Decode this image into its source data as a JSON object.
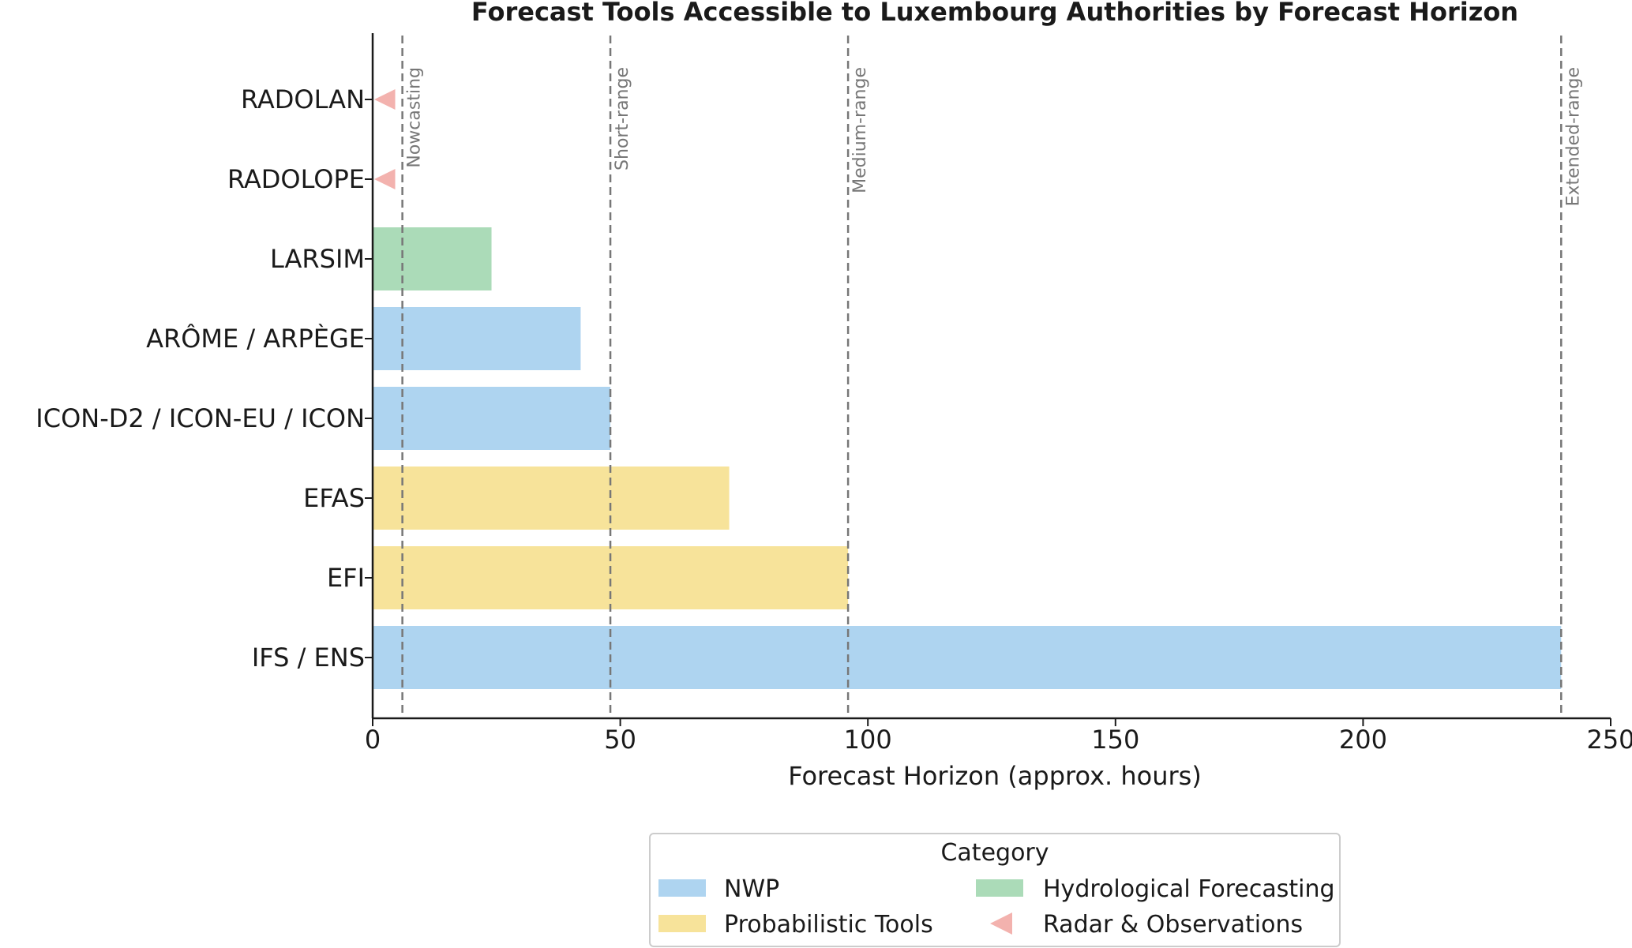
{
  "chart_data": {
    "type": "bar",
    "orientation": "horizontal",
    "title": "Forecast Tools Accessible to Luxembourg Authorities by Forecast Horizon",
    "xlabel": "Forecast Horizon (approx. hours)",
    "ylabel": "",
    "xlim": [
      0,
      250
    ],
    "xticks": [
      0,
      50,
      100,
      150,
      200,
      250
    ],
    "grid": false,
    "bars": [
      {
        "tool": "RADOLAN",
        "value": 2,
        "category": "Radar & Observations"
      },
      {
        "tool": "RADOLOPE",
        "value": 2,
        "category": "Radar & Observations"
      },
      {
        "tool": "LARSIM",
        "value": 24,
        "category": "Hydrological Forecasting"
      },
      {
        "tool": "ARÔME / ARPÈGE",
        "value": 42,
        "category": "NWP"
      },
      {
        "tool": "ICON-D2 / ICON-EU / ICON",
        "value": 48,
        "category": "NWP"
      },
      {
        "tool": "EFAS",
        "value": 72,
        "category": "Probabilistic Tools"
      },
      {
        "tool": "EFI",
        "value": 96,
        "category": "Probabilistic Tools"
      },
      {
        "tool": "IFS / ENS",
        "value": 240,
        "category": "NWP"
      }
    ],
    "reference_lines": [
      {
        "label": "Nowcasting",
        "value": 6
      },
      {
        "label": "Short-range",
        "value": 48
      },
      {
        "label": "Medium-range",
        "value": 96
      },
      {
        "label": "Extended-range",
        "value": 240
      }
    ],
    "legend": {
      "title": "Category",
      "placement": "bottom-center",
      "entries": [
        {
          "label": "NWP",
          "color": "#aed4f0",
          "marker": "rect"
        },
        {
          "label": "Hydrological Forecasting",
          "color": "#abdbb8",
          "marker": "rect"
        },
        {
          "label": "Probabilistic Tools",
          "color": "#f7e39a",
          "marker": "rect"
        },
        {
          "label": "Radar & Observations",
          "color": "#f3b2ae",
          "marker": "triangle-left"
        }
      ]
    }
  }
}
